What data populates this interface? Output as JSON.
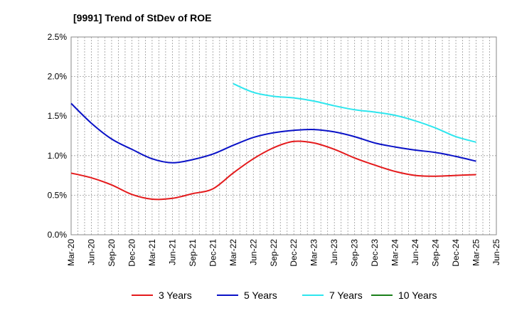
{
  "chart_data": {
    "type": "line",
    "title": "[9991]  Trend of StDev of ROE",
    "xlabel": "",
    "ylabel": "",
    "x": [
      "Mar-20",
      "Jun-20",
      "Sep-20",
      "Dec-20",
      "Mar-21",
      "Jun-21",
      "Sep-21",
      "Dec-21",
      "Mar-22",
      "Jun-22",
      "Sep-22",
      "Dec-22",
      "Mar-23",
      "Jun-23",
      "Sep-23",
      "Dec-23",
      "Mar-24",
      "Jun-24",
      "Sep-24",
      "Dec-24",
      "Mar-25",
      "Jun-25"
    ],
    "yticks": [
      "0.0%",
      "0.5%",
      "1.0%",
      "1.5%",
      "2.0%",
      "2.5%"
    ],
    "ylim": [
      0,
      2.5
    ],
    "grid": true,
    "legend_position": "bottom",
    "series": [
      {
        "name": "3 Years",
        "color": "#e41a1c",
        "values": [
          0.78,
          0.72,
          0.63,
          0.51,
          0.45,
          0.46,
          0.52,
          0.58,
          0.78,
          0.96,
          1.1,
          1.18,
          1.16,
          1.08,
          0.97,
          0.88,
          0.8,
          0.75,
          0.74,
          0.75,
          0.76,
          null
        ]
      },
      {
        "name": "5 Years",
        "color": "#0a12c7",
        "values": [
          1.66,
          1.41,
          1.21,
          1.08,
          0.96,
          0.91,
          0.95,
          1.02,
          1.13,
          1.23,
          1.29,
          1.32,
          1.33,
          1.3,
          1.24,
          1.16,
          1.11,
          1.07,
          1.04,
          0.99,
          0.93,
          null
        ]
      },
      {
        "name": "7 Years",
        "color": "#2ee6ee",
        "values": [
          null,
          null,
          null,
          null,
          null,
          null,
          null,
          null,
          1.91,
          1.8,
          1.75,
          1.73,
          1.69,
          1.63,
          1.58,
          1.55,
          1.51,
          1.44,
          1.35,
          1.24,
          1.17,
          null
        ]
      },
      {
        "name": "10 Years",
        "color": "#1a7f1a",
        "values": [
          null,
          null,
          null,
          null,
          null,
          null,
          null,
          null,
          null,
          null,
          null,
          null,
          null,
          null,
          null,
          null,
          null,
          null,
          null,
          null,
          null,
          null
        ]
      }
    ]
  }
}
